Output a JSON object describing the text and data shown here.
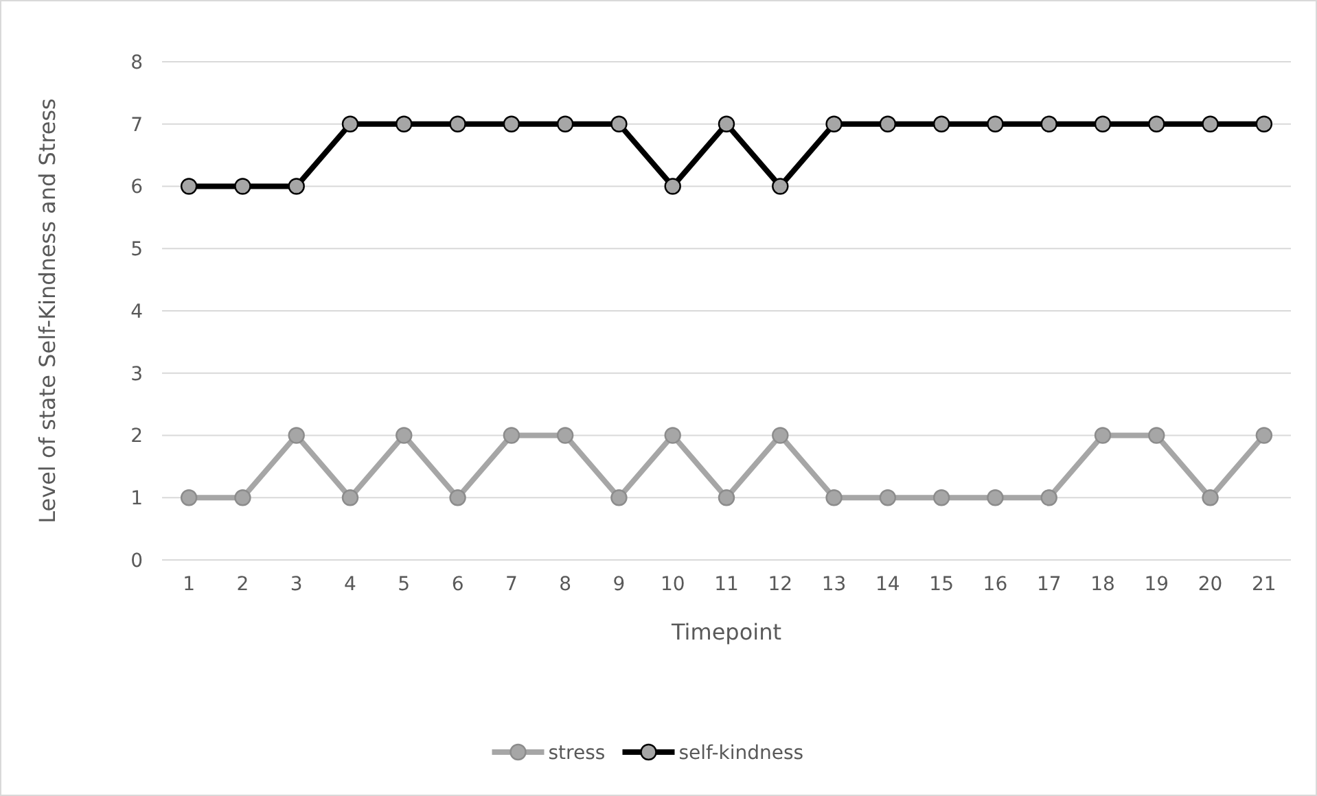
{
  "chart_data": {
    "type": "line",
    "xlabel": "Timepoint",
    "ylabel": "Level of state Self-Kindness and Stress",
    "categories": [
      "1",
      "2",
      "3",
      "4",
      "5",
      "6",
      "7",
      "8",
      "9",
      "10",
      "11",
      "12",
      "13",
      "14",
      "15",
      "16",
      "17",
      "18",
      "19",
      "20",
      "21"
    ],
    "series": [
      {
        "name": "stress",
        "color": "#a6a6a6",
        "values": [
          1,
          1,
          2,
          1,
          2,
          1,
          2,
          2,
          1,
          2,
          1,
          2,
          1,
          1,
          1,
          1,
          1,
          2,
          2,
          1,
          2
        ]
      },
      {
        "name": "self-kindness",
        "color": "#000000",
        "values": [
          6,
          6,
          6,
          7,
          7,
          7,
          7,
          7,
          7,
          6,
          7,
          6,
          7,
          7,
          7,
          7,
          7,
          7,
          7,
          7,
          7
        ]
      }
    ],
    "ylim": [
      0,
      8
    ],
    "yticks": [
      0,
      1,
      2,
      3,
      4,
      5,
      6,
      7,
      8
    ],
    "grid": "y",
    "legend": "bottom",
    "marker": "circle",
    "line_style": "solid"
  }
}
